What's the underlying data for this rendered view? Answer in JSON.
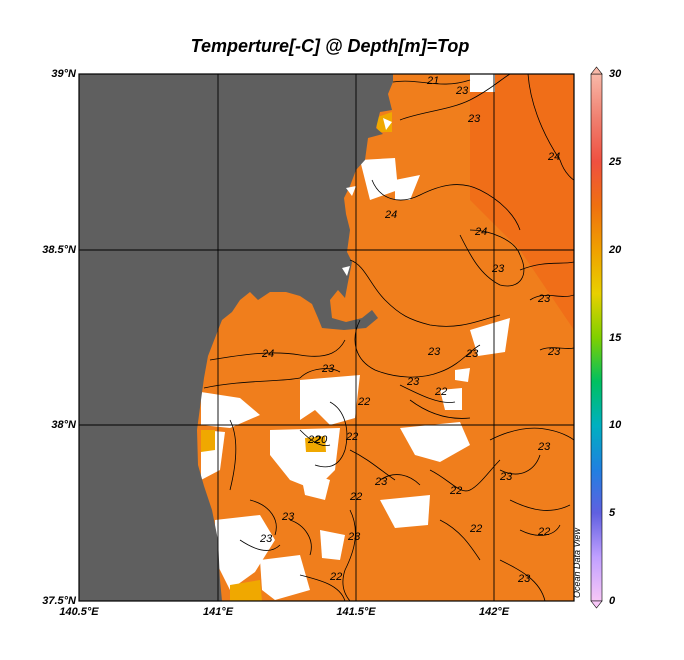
{
  "title": "Temperture[-C] @ Depth[m]=Top",
  "lat_labels": [
    "39°N",
    "38.5°N",
    "38°N",
    "37.5°N"
  ],
  "lon_labels": [
    "140.5°E",
    "141°E",
    "141.5°E",
    "142°E"
  ],
  "colorbar": {
    "ticks": [
      "30",
      "25",
      "20",
      "15",
      "10",
      "5",
      "0"
    ],
    "range": [
      0,
      30
    ],
    "colors": [
      "#f7c7f7",
      "#c0a0ff",
      "#6060e0",
      "#2080e0",
      "#00b0c0",
      "#00c060",
      "#80d000",
      "#e8d000",
      "#f0a000",
      "#f07010",
      "#f05040",
      "#f08070",
      "#f8b8a8"
    ]
  },
  "credit": "Ocean Data View",
  "contour_labels": [
    "21",
    "23",
    "23",
    "24",
    "24",
    "24",
    "23",
    "23",
    "23",
    "24",
    "23",
    "23",
    "23",
    "23",
    "22",
    "22",
    "22",
    "20",
    "22",
    "22",
    "23",
    "23",
    "22",
    "22",
    "23",
    "22",
    "23",
    "23",
    "22",
    "23",
    "23"
  ],
  "colors": {
    "land": "#5f5f5f",
    "sea": "#f07e1c",
    "nodata": "#ffffff",
    "contour": "#000000",
    "grid": "#000000"
  }
}
